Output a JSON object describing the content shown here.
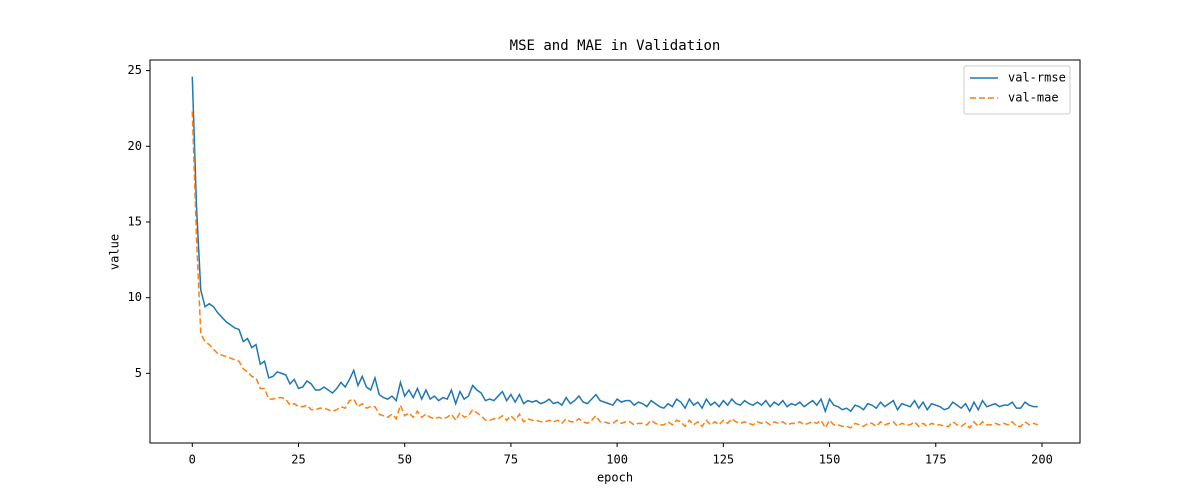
{
  "chart_data": {
    "type": "line",
    "title": "MSE and MAE in Validation",
    "x_label": "epoch",
    "y_label": "value",
    "x": [
      0,
      1,
      2,
      3,
      4,
      5,
      6,
      7,
      8,
      9,
      10,
      11,
      12,
      13,
      14,
      15,
      16,
      17,
      18,
      19,
      20,
      21,
      22,
      23,
      24,
      25,
      26,
      27,
      28,
      29,
      30,
      31,
      32,
      33,
      34,
      35,
      36,
      37,
      38,
      39,
      40,
      41,
      42,
      43,
      44,
      45,
      46,
      47,
      48,
      49,
      50,
      51,
      52,
      53,
      54,
      55,
      56,
      57,
      58,
      59,
      60,
      61,
      62,
      63,
      64,
      65,
      66,
      67,
      68,
      69,
      70,
      71,
      72,
      73,
      74,
      75,
      76,
      77,
      78,
      79,
      80,
      81,
      82,
      83,
      84,
      85,
      86,
      87,
      88,
      89,
      90,
      91,
      92,
      93,
      94,
      95,
      96,
      97,
      98,
      99,
      100,
      101,
      102,
      103,
      104,
      105,
      106,
      107,
      108,
      109,
      110,
      111,
      112,
      113,
      114,
      115,
      116,
      117,
      118,
      119,
      120,
      121,
      122,
      123,
      124,
      125,
      126,
      127,
      128,
      129,
      130,
      131,
      132,
      133,
      134,
      135,
      136,
      137,
      138,
      139,
      140,
      141,
      142,
      143,
      144,
      145,
      146,
      147,
      148,
      149,
      150,
      151,
      152,
      153,
      154,
      155,
      156,
      157,
      158,
      159,
      160,
      161,
      162,
      163,
      164,
      165,
      166,
      167,
      168,
      169,
      170,
      171,
      172,
      173,
      174,
      175,
      176,
      177,
      178,
      179,
      180,
      181,
      182,
      183,
      184,
      185,
      186,
      187,
      188,
      189,
      190,
      191,
      192,
      193,
      194,
      195,
      196,
      197,
      198,
      199
    ],
    "series": [
      {
        "name": "val-rmse",
        "color": "#1f77b4",
        "linestyle": "solid",
        "values": [
          24.6,
          16,
          10.5,
          9.4,
          9.6,
          9.4,
          9.0,
          8.7,
          8.4,
          8.2,
          8.0,
          7.9,
          7.1,
          7.3,
          6.7,
          6.9,
          5.6,
          5.8,
          4.7,
          4.8,
          5.1,
          5.0,
          4.9,
          4.3,
          4.6,
          4.0,
          4.1,
          4.5,
          4.3,
          3.9,
          3.9,
          4.1,
          3.9,
          3.7,
          4.0,
          4.4,
          4.1,
          4.6,
          5.2,
          4.2,
          4.8,
          4.1,
          3.9,
          4.7,
          3.6,
          3.4,
          3.3,
          3.5,
          3.2,
          4.4,
          3.5,
          3.9,
          3.4,
          4.0,
          3.3,
          3.9,
          3.3,
          3.5,
          3.2,
          3.4,
          3.3,
          3.9,
          3.0,
          3.8,
          3.3,
          3.5,
          4.2,
          3.9,
          3.7,
          3.2,
          3.3,
          3.2,
          3.5,
          3.8,
          3.2,
          3.6,
          3.1,
          3.6,
          3.0,
          3.2,
          3.1,
          3.2,
          3.0,
          3.1,
          3.3,
          3.0,
          3.1,
          2.9,
          3.4,
          3.0,
          3.2,
          3.5,
          3.1,
          3.0,
          3.3,
          3.6,
          3.2,
          3.1,
          3.0,
          2.9,
          3.3,
          3.1,
          3.2,
          3.2,
          2.9,
          3.1,
          3.0,
          2.8,
          3.2,
          3.0,
          2.8,
          2.7,
          3.0,
          2.8,
          3.3,
          3.1,
          2.7,
          3.3,
          2.9,
          3.1,
          2.7,
          3.3,
          2.9,
          3.1,
          2.8,
          3.2,
          2.9,
          3.3,
          3.0,
          2.9,
          3.2,
          3.0,
          2.9,
          3.1,
          2.9,
          3.2,
          2.8,
          3.1,
          2.9,
          3.2,
          2.8,
          3.0,
          2.9,
          3.1,
          2.8,
          3.0,
          3.2,
          2.9,
          3.3,
          2.5,
          3.3,
          2.9,
          2.8,
          2.6,
          2.7,
          2.5,
          2.9,
          2.8,
          2.6,
          3.0,
          2.9,
          2.7,
          3.1,
          2.8,
          3.0,
          3.2,
          2.6,
          3.0,
          2.9,
          2.8,
          3.2,
          2.7,
          3.1,
          2.6,
          3.0,
          2.9,
          2.8,
          2.6,
          2.7,
          3.1,
          2.9,
          2.7,
          3.0,
          2.5,
          3.1,
          2.6,
          3.2,
          2.8,
          2.9,
          3.0,
          2.8,
          2.9,
          2.9,
          3.1,
          2.7,
          2.7,
          3.1,
          2.9,
          2.8,
          2.8
        ]
      },
      {
        "name": "val-mae",
        "color": "#ff7f0e",
        "linestyle": "dashed",
        "values": [
          22.3,
          14,
          7.6,
          7.1,
          6.9,
          6.6,
          6.3,
          6.2,
          6.1,
          6.0,
          5.9,
          5.8,
          5.3,
          5.1,
          4.8,
          4.7,
          4.0,
          4.0,
          3.3,
          3.3,
          3.4,
          3.4,
          3.3,
          2.9,
          3.0,
          2.8,
          2.8,
          2.9,
          2.6,
          2.6,
          2.7,
          2.7,
          2.6,
          2.5,
          2.6,
          2.8,
          2.7,
          3.2,
          3.3,
          2.8,
          3.0,
          2.7,
          2.8,
          2.8,
          2.3,
          2.2,
          2.1,
          2.3,
          2.0,
          2.9,
          2.2,
          2.4,
          2.1,
          2.5,
          2.1,
          2.3,
          2.1,
          2.0,
          2.1,
          2.0,
          2.1,
          2.3,
          1.9,
          2.4,
          2.1,
          2.2,
          2.6,
          2.4,
          2.2,
          1.9,
          1.9,
          2.0,
          2.0,
          2.2,
          1.9,
          2.2,
          1.9,
          2.3,
          1.8,
          2.0,
          1.9,
          1.9,
          1.8,
          1.8,
          1.9,
          1.8,
          1.9,
          1.7,
          2.0,
          1.8,
          1.8,
          2.0,
          1.8,
          1.7,
          1.9,
          2.2,
          1.8,
          1.8,
          1.7,
          1.7,
          1.9,
          1.7,
          1.8,
          1.8,
          1.6,
          1.7,
          1.7,
          1.6,
          1.9,
          1.7,
          1.6,
          1.6,
          1.8,
          1.6,
          1.9,
          1.8,
          1.5,
          1.9,
          1.6,
          1.8,
          1.5,
          1.9,
          1.6,
          1.8,
          1.6,
          1.9,
          1.7,
          2.0,
          1.8,
          1.7,
          1.8,
          1.7,
          1.6,
          1.8,
          1.7,
          1.8,
          1.6,
          1.8,
          1.7,
          1.8,
          1.6,
          1.7,
          1.7,
          1.8,
          1.6,
          1.7,
          1.8,
          1.7,
          1.9,
          1.4,
          1.9,
          1.6,
          1.6,
          1.5,
          1.5,
          1.4,
          1.7,
          1.6,
          1.5,
          1.7,
          1.7,
          1.5,
          1.8,
          1.6,
          1.7,
          1.8,
          1.5,
          1.7,
          1.6,
          1.6,
          1.8,
          1.5,
          1.7,
          1.5,
          1.7,
          1.6,
          1.6,
          1.5,
          1.5,
          1.8,
          1.6,
          1.5,
          1.7,
          1.4,
          1.8,
          1.5,
          1.8,
          1.6,
          1.6,
          1.7,
          1.6,
          1.7,
          1.6,
          1.8,
          1.5,
          1.5,
          1.8,
          1.6,
          1.7,
          1.6
        ]
      }
    ],
    "xlim": [
      -9.95,
      208.95
    ],
    "ylim": [
      0.4,
      25.7
    ],
    "xticks": [
      0,
      25,
      50,
      75,
      100,
      125,
      150,
      175,
      200
    ],
    "yticks": [
      5,
      10,
      15,
      20,
      25
    ],
    "grid": false,
    "legend": "upper right"
  }
}
